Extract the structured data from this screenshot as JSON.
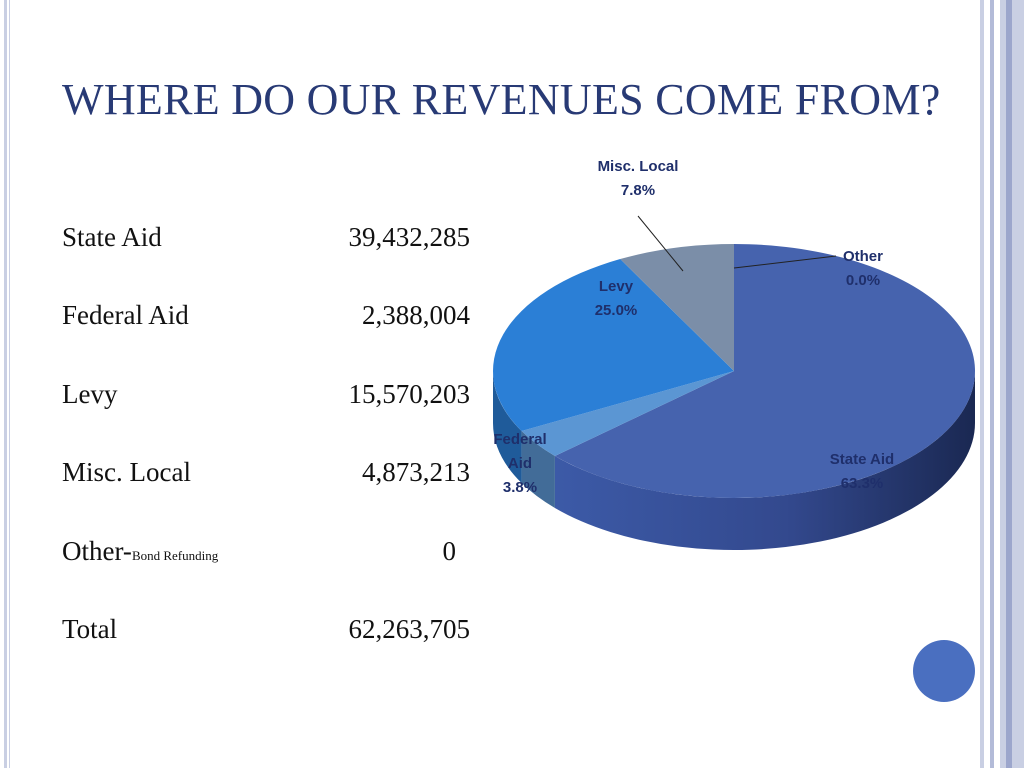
{
  "slide": {
    "title": "WHERE DO OUR REVENUES COME FROM?"
  },
  "table": {
    "rows": [
      {
        "label": "State Aid",
        "suffix": "",
        "amount": "39,432,285"
      },
      {
        "label": "Federal Aid",
        "suffix": "",
        "amount": "2,388,004"
      },
      {
        "label": "Levy",
        "suffix": "",
        "amount": "15,570,203"
      },
      {
        "label": "Misc. Local",
        "suffix": "",
        "amount": "4,873,213"
      },
      {
        "label": "Other-",
        "suffix": "Bond Refunding",
        "amount": "0"
      },
      {
        "label": "Total",
        "suffix": "",
        "amount": "62,263,705"
      }
    ]
  },
  "chart_data": {
    "type": "pie",
    "title": "",
    "slices": [
      {
        "name": "State Aid",
        "value": 39432285,
        "percent_label": "63.3%",
        "color": "#4663ae"
      },
      {
        "name": "Federal Aid",
        "value": 2388004,
        "percent_label": "3.8%",
        "color": "#5b96d3"
      },
      {
        "name": "Levy",
        "value": 15570203,
        "percent_label": "25.0%",
        "color": "#2b7fd6"
      },
      {
        "name": "Misc. Local",
        "value": 4873213,
        "percent_label": "7.8%",
        "color": "#7b8ea8"
      },
      {
        "name": "Other",
        "value": 0,
        "percent_label": "0.0%",
        "color": "#4663ae"
      }
    ],
    "slice_labels": {
      "State Aid": [
        "State Aid",
        "63.3%"
      ],
      "Federal Aid": [
        "Federal",
        "Aid",
        "3.8%"
      ],
      "Levy": [
        "Levy",
        "25.0%"
      ],
      "Misc. Local": [
        "Misc. Local",
        "7.8%"
      ],
      "Other": [
        "Other",
        "0.0%"
      ]
    }
  },
  "theme": {
    "title_color": "#283a75",
    "side_bar_colors": [
      "#c9cfe3",
      "#b3bbd8",
      "#9ca6cc"
    ],
    "accent_circle": "#4a6fc0"
  }
}
